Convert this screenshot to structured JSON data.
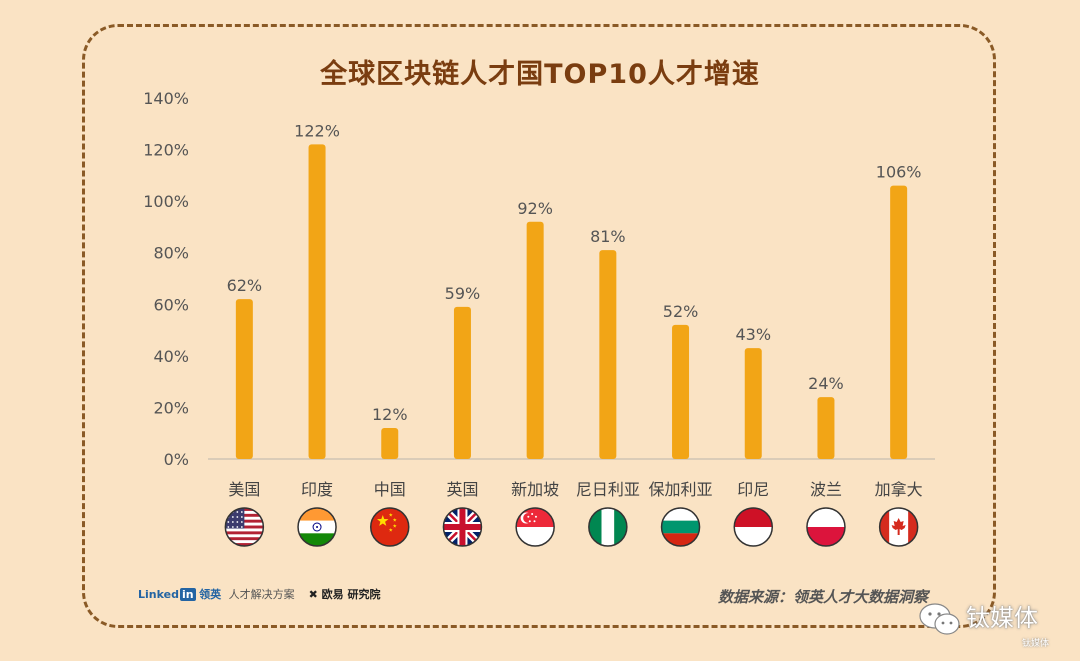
{
  "chart_data": {
    "type": "bar",
    "title": "全球区块链人才国TOP10人才增速",
    "categories": [
      "美国",
      "印度",
      "中国",
      "英国",
      "新加坡",
      "尼日利亚",
      "保加利亚",
      "印尼",
      "波兰",
      "加拿大"
    ],
    "values": [
      62,
      122,
      12,
      59,
      92,
      81,
      52,
      43,
      24,
      106
    ],
    "value_labels": [
      "62%",
      "122%",
      "12%",
      "59%",
      "92%",
      "81%",
      "52%",
      "43%",
      "24%",
      "106%"
    ],
    "yticks": [
      "0%",
      "20%",
      "40%",
      "60%",
      "80%",
      "100%",
      "120%",
      "140%"
    ],
    "ylim": [
      0,
      140
    ],
    "grid": false,
    "bar_color": "#f2a516",
    "flag_icons": [
      "us-flag-icon",
      "india-flag-icon",
      "china-flag-icon",
      "uk-flag-icon",
      "singapore-flag-icon",
      "nigeria-flag-icon",
      "bulgaria-flag-icon",
      "indonesia-flag-icon",
      "poland-flag-icon",
      "canada-flag-icon"
    ]
  },
  "footer": {
    "linkedin_brand": "Linked",
    "linkedin_box": "in",
    "linkedin_cn": "领英",
    "linkedin_sub": "人才解决方案",
    "ou_brand": "欧易 研究院",
    "source": "数据来源：领英人才大数据洞察"
  },
  "watermark": {
    "text": "钛媒体",
    "small": "钛媒体"
  },
  "colors": {
    "background": "#fae3c4",
    "title": "#7a3d10",
    "border": "#8a5a26",
    "bar": "#f2a516"
  }
}
